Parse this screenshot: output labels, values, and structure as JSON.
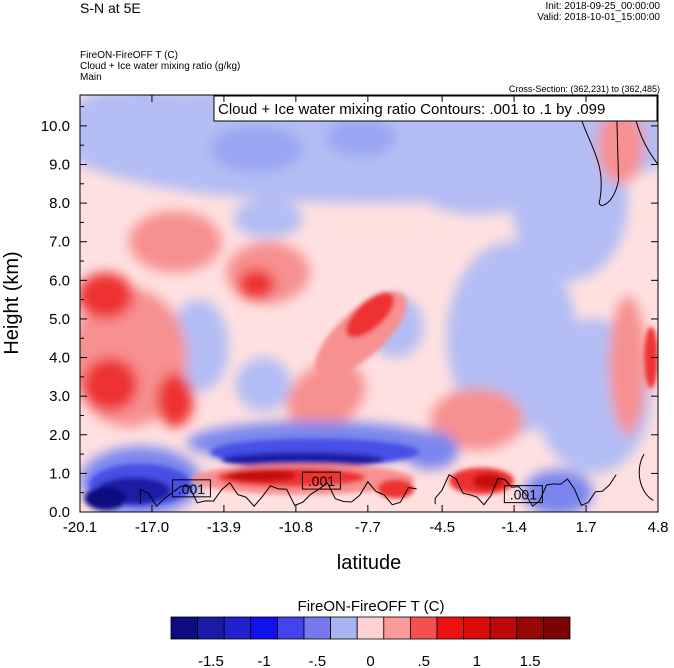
{
  "header": {
    "title": "S-N at 5E",
    "init": "Init: 2018-09-25_00:00:00",
    "valid": "Valid: 2018-10-01_15:00:00",
    "var_line1": "FireON-FireOFF T   (C)",
    "var_line2": "Cloud + Ice water mixing ratio   (g/kg)",
    "var_line3": "Main",
    "cross_section": "Cross-Section: (362,231) to (362,485)"
  },
  "chart_data": {
    "type": "heatmap",
    "title": "S-N at 5E",
    "contour_label": "Cloud + Ice water mixing ratio Contours: .001 to .1 by .099",
    "xlabel": "latitude",
    "ylabel": "Height (km)",
    "xlim": [
      -20.1,
      4.8
    ],
    "ylim": [
      0.0,
      10.8
    ],
    "xticks": [
      "-20.1",
      "-17.0",
      "-13.9",
      "-10.8",
      "-7.7",
      "-4.5",
      "-1.4",
      "1.7",
      "4.8"
    ],
    "yticks": [
      "0.0",
      "1.0",
      "2.0",
      "3.0",
      "4.0",
      "5.0",
      "6.0",
      "7.0",
      "8.0",
      "9.0",
      "10.0"
    ],
    "contour_labels": [
      ".001",
      ".001",
      ".001"
    ],
    "colorbar": {
      "title": "FireON-FireOFF T  (C)",
      "colors": [
        "#0c0c80",
        "#1a1aa6",
        "#2222cc",
        "#1111ee",
        "#4444ee",
        "#7777ee",
        "#aab3f2",
        "#ffd1d1",
        "#fa9a9a",
        "#f55050",
        "#ee1111",
        "#dd0a0a",
        "#bb0808",
        "#990606",
        "#7a0404"
      ],
      "tick_labels": [
        "-1.5",
        "-1",
        "-.5",
        "0",
        ".5",
        "1",
        "1.5"
      ]
    },
    "features": [
      {
        "type": "cold anomaly (low level)",
        "lat": [
          -19.5,
          -15.5
        ],
        "height_km": [
          0.1,
          1.2
        ],
        "delta_T": -1.5
      },
      {
        "type": "cold anomaly (band)",
        "lat": [
          -14.5,
          -5.5
        ],
        "height_km": [
          1.2,
          2.3
        ],
        "delta_T": -0.8
      },
      {
        "type": "warm anomaly (surface)",
        "lat": [
          -15.0,
          -6.0
        ],
        "height_km": [
          0.3,
          1.2
        ],
        "delta_T": 1.5
      },
      {
        "type": "warm anomaly (surface)",
        "lat": [
          -4.0,
          -1.5
        ],
        "height_km": [
          0.3,
          1.1
        ],
        "delta_T": 1.2
      },
      {
        "type": "warm anomaly (tilted plume)",
        "lat": [
          -10.5,
          -6.5
        ],
        "height_km": [
          2.0,
          6.0
        ],
        "delta_T": 0.8
      },
      {
        "type": "warm anomaly",
        "lat": [
          -20.1,
          -15.5
        ],
        "height_km": [
          2.0,
          6.0
        ],
        "delta_T": 0.8
      },
      {
        "type": "warm anomaly",
        "lat": [
          -13.5,
          -11.0
        ],
        "height_km": [
          5.5,
          6.5
        ],
        "delta_T": 0.8
      },
      {
        "type": "cold anomaly (upper)",
        "lat": [
          -20.1,
          4.8
        ],
        "height_km": [
          8.0,
          10.8
        ],
        "delta_T": -0.4
      }
    ]
  }
}
